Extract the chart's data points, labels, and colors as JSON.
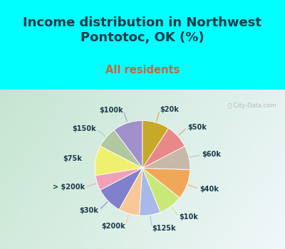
{
  "title": "Income distribution in Northwest\nPontotoc, OK (%)",
  "subtitle": "All residents",
  "title_color": "#1a3a4a",
  "subtitle_color": "#cc6633",
  "background_top": "#00ffff",
  "watermark": "ⓘ City-Data.com",
  "labels": [
    "$100k",
    "$150k",
    "$75k",
    "> $200k",
    "$30k",
    "$200k",
    "$125k",
    "$10k",
    "$40k",
    "$60k",
    "$50k",
    "$20k"
  ],
  "values": [
    10,
    7,
    10,
    5,
    9,
    7,
    7,
    8,
    10,
    8,
    8,
    9
  ],
  "colors": [
    "#a090cc",
    "#b0c8a0",
    "#f0f070",
    "#f0a0b8",
    "#8080cc",
    "#f8c898",
    "#a8b8e8",
    "#c8e878",
    "#f0a858",
    "#c8b8a8",
    "#e88888",
    "#c8a828"
  ],
  "startangle": 90,
  "figsize": [
    4.0,
    3.5
  ],
  "dpi": 100,
  "chart_bg_colors": [
    "#c5e8d8",
    "#dff0e8",
    "#f0f8f4",
    "#e0f0ea",
    "#cce8d8"
  ],
  "title_fontsize": 13,
  "subtitle_fontsize": 10.5
}
